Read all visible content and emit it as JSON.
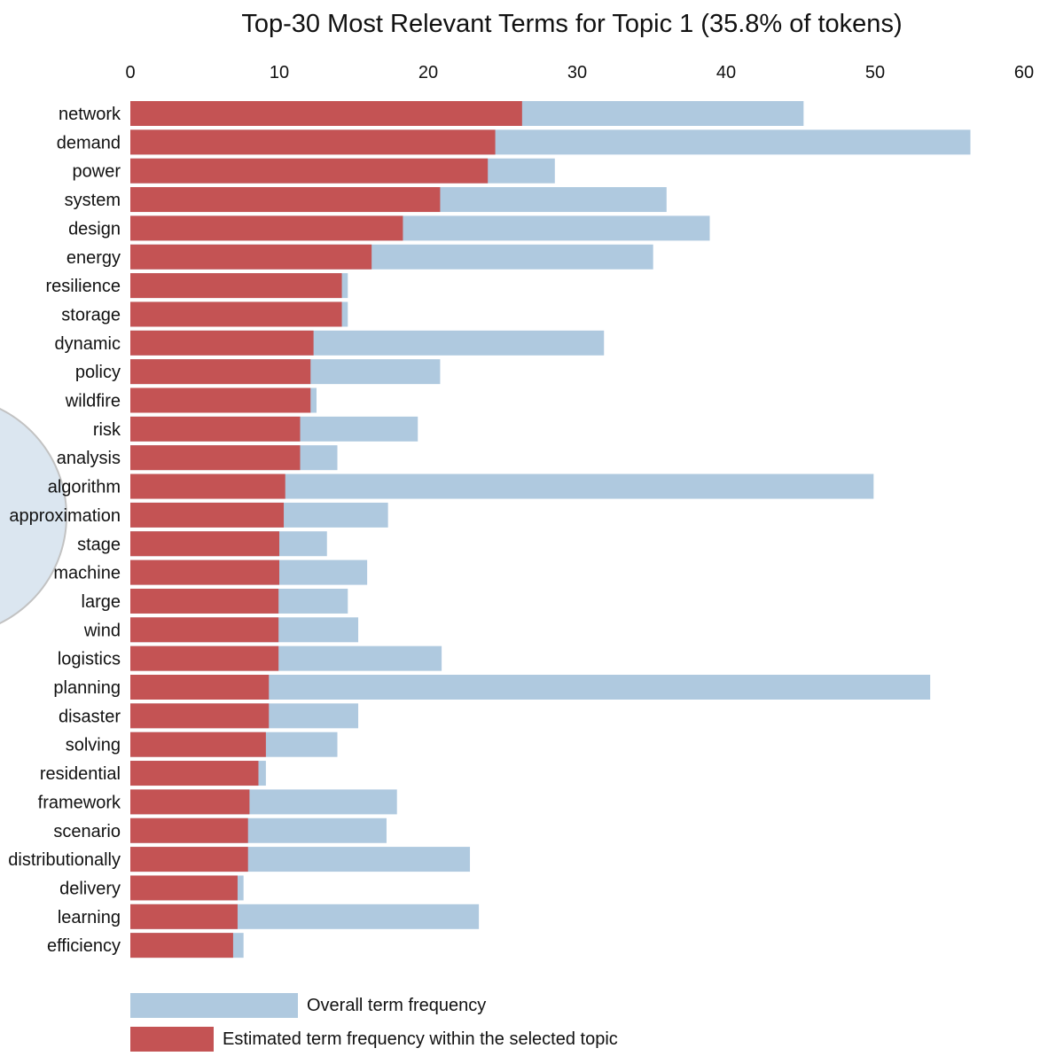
{
  "colors": {
    "overall": "#afc9df",
    "topic": "#c45354",
    "circle_fill": "#dbe6f0",
    "circle_stroke": "#c2c2c2"
  },
  "chart_data": {
    "type": "bar",
    "orientation": "horizontal",
    "stacked": "overlay",
    "title": "Top-30 Most Relevant Terms for Topic 1 (35.8% of tokens)",
    "xlabel": "",
    "ylabel": "",
    "xlim": [
      0,
      60
    ],
    "x_ticks": [
      0,
      10,
      20,
      30,
      40,
      50,
      60
    ],
    "x_axis_position": "top",
    "grid": false,
    "legend_position": "bottom-left",
    "categories": [
      "network",
      "demand",
      "power",
      "system",
      "design",
      "energy",
      "resilience",
      "storage",
      "dynamic",
      "policy",
      "wildfire",
      "risk",
      "analysis",
      "algorithm",
      "approximation",
      "stage",
      "machine",
      "large",
      "wind",
      "logistics",
      "planning",
      "disaster",
      "solving",
      "residential",
      "framework",
      "scenario",
      "distributionally",
      "delivery",
      "learning",
      "efficiency"
    ],
    "series": [
      {
        "name": "Overall term frequency",
        "color_key": "overall",
        "values": [
          45.2,
          56.4,
          28.5,
          36.0,
          38.9,
          35.1,
          14.6,
          14.6,
          31.8,
          20.8,
          12.5,
          19.3,
          13.9,
          49.9,
          17.3,
          13.2,
          15.9,
          14.6,
          15.3,
          20.9,
          53.7,
          15.3,
          13.9,
          9.1,
          17.9,
          17.2,
          22.8,
          7.6,
          23.4,
          7.6
        ]
      },
      {
        "name": "Estimated term frequency within the selected topic",
        "color_key": "topic",
        "values": [
          26.3,
          24.5,
          24.0,
          20.8,
          18.3,
          16.2,
          14.2,
          14.2,
          12.3,
          12.1,
          12.1,
          11.4,
          11.4,
          10.4,
          10.3,
          10.0,
          10.0,
          9.95,
          9.95,
          9.95,
          9.3,
          9.3,
          9.1,
          8.6,
          8.0,
          7.9,
          7.9,
          7.2,
          7.2,
          6.9
        ]
      }
    ]
  }
}
